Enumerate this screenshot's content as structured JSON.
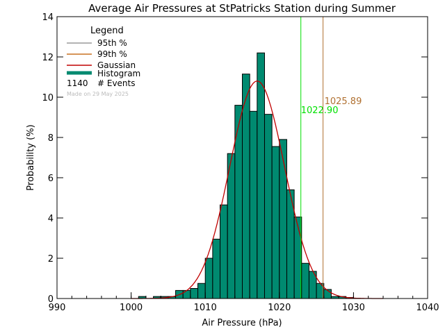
{
  "chart_data": {
    "type": "bar",
    "title": "Average Air Pressures at StPatricks Station during Summer",
    "xlabel": "Air Pressure (hPa)",
    "ylabel": "Probability (%)",
    "xlim": [
      990,
      1040
    ],
    "ylim": [
      0,
      14
    ],
    "xticks": [
      990,
      1000,
      1010,
      1020,
      1030,
      1040
    ],
    "yticks": [
      0,
      2,
      4,
      6,
      8,
      10,
      12,
      14
    ],
    "bin_edges": [
      1001,
      1002,
      1003,
      1004,
      1005,
      1006,
      1007,
      1008,
      1009,
      1010,
      1011,
      1012,
      1013,
      1014,
      1015,
      1016,
      1017,
      1018,
      1019,
      1020,
      1021,
      1022,
      1023,
      1024,
      1025,
      1026,
      1027,
      1028,
      1029,
      1030
    ],
    "values": [
      0.1,
      0,
      0.1,
      0.1,
      0.1,
      0.4,
      0.4,
      0.5,
      0.75,
      2.0,
      2.95,
      4.65,
      7.2,
      9.6,
      11.15,
      9.3,
      12.2,
      9.15,
      7.55,
      7.9,
      5.4,
      4.05,
      1.75,
      1.35,
      0.75,
      0.45,
      0.1,
      0.1,
      0.05
    ],
    "gaussian": {
      "mean": 1017.0,
      "sigma": 3.7,
      "peak": 10.8
    },
    "percentile_95": {
      "value": 1022.9,
      "label": "1022.90",
      "color": "#00e000"
    },
    "percentile_99": {
      "value": 1025.89,
      "label": "1025.89",
      "color": "#b07030"
    },
    "legend": {
      "title": "Legend",
      "items": [
        "95th %",
        "99th %",
        "Gaussian",
        "Histogram"
      ],
      "events_count": "1140",
      "events_label": "# Events",
      "made_on": "Made on 29 May 2025",
      "position": "top-left"
    },
    "colors": {
      "histogram": "#008a70",
      "gaussian": "#c00000",
      "p95_legend": "#999999",
      "p99_legend": "#c87020"
    }
  }
}
